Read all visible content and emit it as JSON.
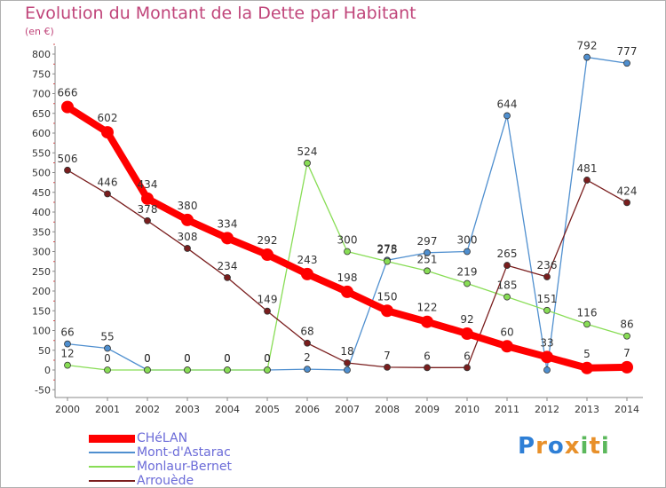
{
  "chart_data": {
    "type": "line",
    "title": "Evolution du Montant de la Dette par Habitant",
    "unit": "(en €)",
    "x": [
      "2000",
      "2001",
      "2002",
      "2003",
      "2004",
      "2005",
      "2006",
      "2007",
      "2008",
      "2009",
      "2010",
      "2011",
      "2012",
      "2013",
      "2014"
    ],
    "yticks": [
      -50,
      0,
      50,
      100,
      150,
      200,
      250,
      300,
      350,
      400,
      450,
      500,
      550,
      600,
      650,
      700,
      750,
      800
    ],
    "ylim": [
      -50,
      810
    ],
    "grid": false,
    "legend_position": "bottom-left",
    "series": [
      {
        "name": "CHéLAN",
        "color": "#ff0000",
        "values": [
          666,
          602,
          434,
          380,
          334,
          292,
          243,
          198,
          150,
          122,
          92,
          60,
          33,
          5,
          7
        ],
        "labels": [
          "666",
          "602",
          "434",
          "380",
          "334",
          "292",
          "243",
          "198",
          "150",
          "122",
          "92",
          "60",
          "33",
          "5",
          "7"
        ]
      },
      {
        "name": "Mont-d'Astarac",
        "color": "#4f8fcf",
        "values": [
          66,
          55,
          0,
          0,
          0,
          0,
          2,
          0,
          278,
          297,
          300,
          644,
          0,
          792,
          777
        ],
        "labels": [
          "66",
          "55",
          "0",
          "0",
          "0",
          "0",
          "2",
          "",
          "278",
          "297",
          "300",
          "644",
          "",
          "792",
          "777"
        ]
      },
      {
        "name": "Monlaur-Bernet",
        "color": "#88dd55",
        "values": [
          12,
          0,
          0,
          0,
          0,
          0,
          524,
          300,
          275,
          251,
          219,
          185,
          151,
          116,
          86
        ],
        "labels": [
          "12",
          "0",
          "0",
          "0",
          "0",
          "0",
          "524",
          "300",
          "275",
          "251",
          "219",
          "185",
          "151",
          "116",
          "86"
        ]
      },
      {
        "name": "Arrouède",
        "color": "#7a1e1e",
        "values": [
          506,
          446,
          378,
          308,
          234,
          149,
          68,
          18,
          7,
          6,
          6,
          265,
          236,
          481,
          424
        ],
        "labels": [
          "506",
          "446",
          "378",
          "308",
          "234",
          "149",
          "68",
          "18",
          "7",
          "6",
          "6",
          "265",
          "236",
          "481",
          "424"
        ]
      }
    ]
  },
  "logo": {
    "letters": [
      "P",
      "r",
      "o",
      "x",
      "i",
      "t",
      "i"
    ],
    "colors": [
      "#2e7fd6",
      "#e8902a",
      "#2e7fd6",
      "#e8902a",
      "#5cb85c",
      "#e8902a",
      "#5cb85c"
    ]
  }
}
